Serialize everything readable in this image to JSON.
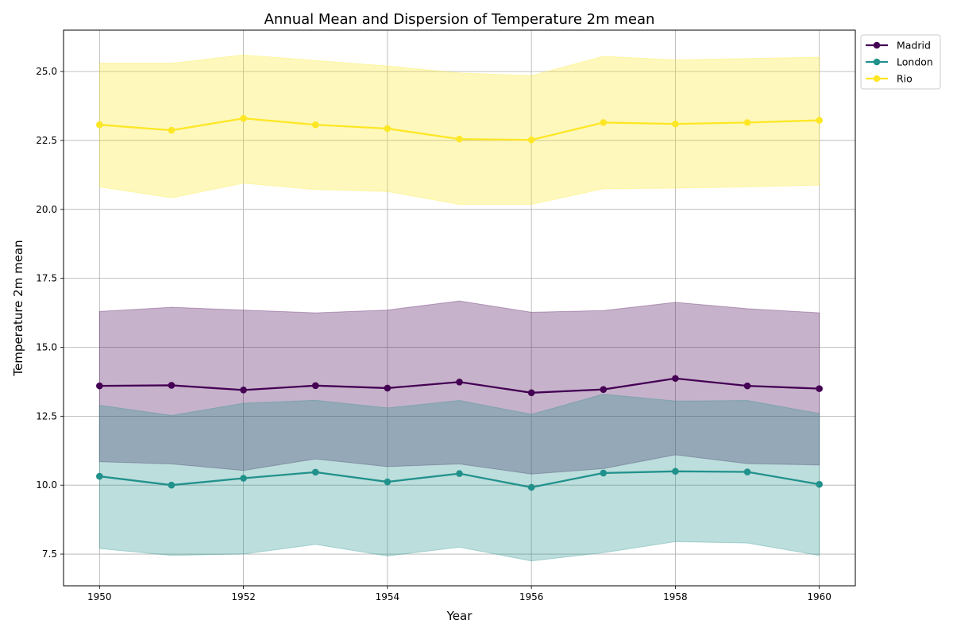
{
  "chart_data": {
    "type": "line",
    "title": "Annual Mean and Dispersion of Temperature 2m mean",
    "xlabel": "Year",
    "ylabel": "Temperature 2m mean",
    "xlim": [
      1949.5,
      1960.5
    ],
    "ylim": [
      6.35,
      26.5
    ],
    "x": [
      1950,
      1951,
      1952,
      1953,
      1954,
      1955,
      1956,
      1957,
      1958,
      1959,
      1960
    ],
    "x_ticks": [
      1950,
      1952,
      1954,
      1956,
      1958,
      1960
    ],
    "y_ticks": [
      7.5,
      10.0,
      12.5,
      15.0,
      17.5,
      20.0,
      22.5,
      25.0
    ],
    "y_tick_labels": [
      "7.5",
      "10.0",
      "12.5",
      "15.0",
      "17.5",
      "20.0",
      "22.5",
      "25.0"
    ],
    "grid": true,
    "legend_position": "outside top-right",
    "series": [
      {
        "name": "Madrid",
        "color": "#440154",
        "mean": [
          13.6,
          13.62,
          13.45,
          13.61,
          13.52,
          13.74,
          13.35,
          13.47,
          13.87,
          13.6,
          13.5
        ],
        "upper": [
          16.3,
          16.45,
          16.35,
          16.25,
          16.35,
          16.68,
          16.27,
          16.33,
          16.63,
          16.4,
          16.25
        ],
        "lower": [
          10.85,
          10.77,
          10.53,
          10.95,
          10.67,
          10.77,
          10.4,
          10.6,
          11.1,
          10.78,
          10.73
        ]
      },
      {
        "name": "London",
        "color": "#21918c",
        "mean": [
          10.32,
          10.0,
          10.25,
          10.47,
          10.12,
          10.42,
          9.92,
          10.44,
          10.5,
          10.48,
          10.03
        ],
        "upper": [
          12.9,
          12.53,
          12.97,
          13.08,
          12.8,
          13.07,
          12.57,
          13.3,
          13.05,
          13.07,
          12.6
        ],
        "lower": [
          7.7,
          7.45,
          7.5,
          7.85,
          7.43,
          7.75,
          7.25,
          7.55,
          7.95,
          7.9,
          7.45
        ]
      },
      {
        "name": "Rio",
        "color": "#fde725",
        "mean": [
          23.07,
          22.87,
          23.3,
          23.07,
          22.93,
          22.55,
          22.52,
          23.15,
          23.1,
          23.15,
          23.23
        ],
        "upper": [
          25.3,
          25.3,
          25.6,
          25.4,
          25.2,
          24.95,
          24.85,
          25.55,
          25.42,
          25.47,
          25.52
        ],
        "lower": [
          20.82,
          20.42,
          20.95,
          20.72,
          20.65,
          20.18,
          20.18,
          20.75,
          20.77,
          20.82,
          20.88
        ]
      }
    ]
  }
}
